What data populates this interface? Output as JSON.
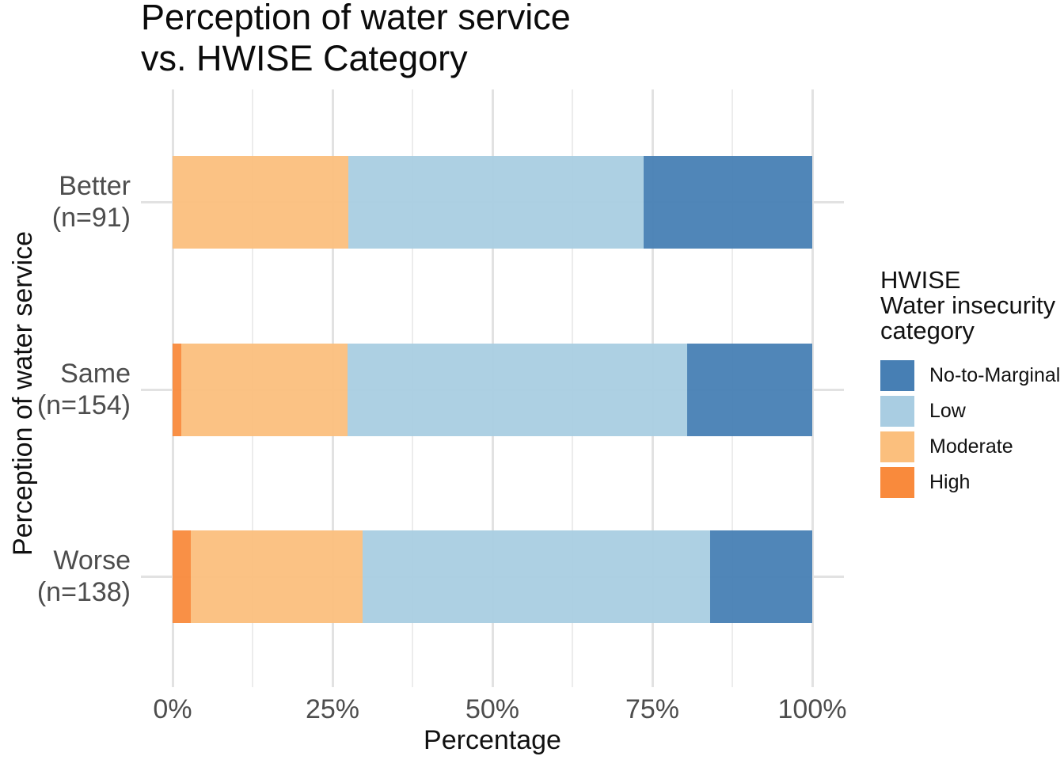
{
  "chart_data": {
    "type": "bar",
    "orientation": "horizontal",
    "stacked": "percent",
    "title_line1": "Perception of water service",
    "title_line2": "vs. HWISE Category",
    "xlabel": "Percentage",
    "ylabel": "Perception of water service",
    "x_ticks": [
      "0%",
      "25%",
      "50%",
      "75%",
      "100%"
    ],
    "xlim": [
      0,
      100
    ],
    "minor_tick_step_pct": 12.5,
    "grid": {
      "major_color": "#E2E2E2",
      "minor_color": "#ECECEC",
      "background": "#FFFFFF"
    },
    "categories": [
      {
        "label": "Better",
        "n": "(n=91)"
      },
      {
        "label": "Same",
        "n": "(n=154)"
      },
      {
        "label": "Worse",
        "n": "(n=138)"
      }
    ],
    "series": [
      {
        "name": "High",
        "color": "#F98A3C",
        "values": [
          0,
          1.3,
          2.9
        ]
      },
      {
        "name": "Moderate",
        "color": "#FBBF7D",
        "values": [
          27.5,
          26.0,
          26.8
        ]
      },
      {
        "name": "Low",
        "color": "#A9CDE2",
        "values": [
          46.2,
          53.2,
          54.3
        ]
      },
      {
        "name": "No-to-Marginal",
        "color": "#477FB4",
        "values": [
          26.3,
          19.5,
          16.0
        ]
      }
    ],
    "legend": {
      "position": "right",
      "title_line1": "HWISE",
      "title_line2": "Water insecurity",
      "title_line3": "category",
      "items": [
        "No-to-Marginal",
        "Low",
        "Moderate",
        "High"
      ]
    }
  }
}
